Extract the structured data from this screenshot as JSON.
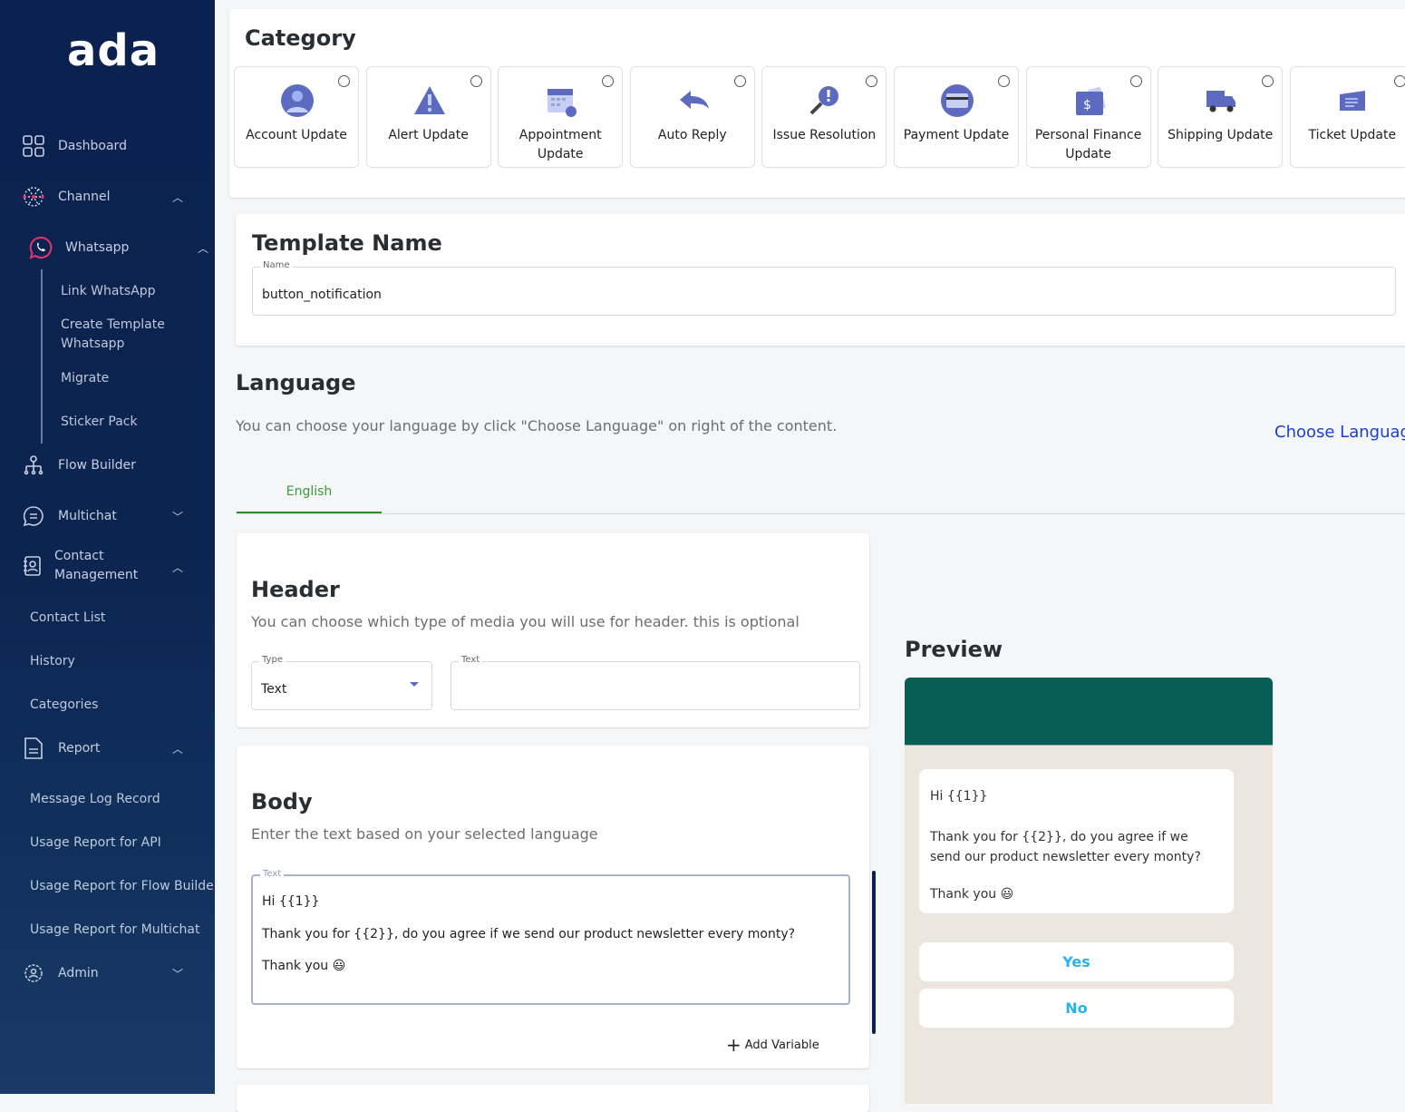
{
  "sidebar": {
    "logo": "ada",
    "items": [
      {
        "label": "Dashboard",
        "icon": "grid-icon"
      },
      {
        "label": "Channel",
        "icon": "network-icon"
      },
      {
        "label": "Whatsapp",
        "icon": "whatsapp-icon"
      },
      {
        "label": "Flow Builder",
        "icon": "flow-icon"
      },
      {
        "label": "Multichat",
        "icon": "chat-icon"
      },
      {
        "label": "Contact Management",
        "icon": "contact-book-icon"
      },
      {
        "label": "Report",
        "icon": "document-icon"
      },
      {
        "label": "Admin",
        "icon": "gear-icon"
      }
    ],
    "whatsapp_sub": [
      "Link WhatsApp",
      "Create Template Whatsapp",
      "Migrate",
      "Sticker Pack"
    ],
    "contact_sub": [
      "Contact List",
      "History",
      "Categories"
    ],
    "report_sub": [
      "Message Log Record",
      "Usage Report for API",
      "Usage Report for Flow Builder",
      "Usage Report for Multichat"
    ]
  },
  "category": {
    "title": "Category",
    "items": [
      {
        "label": "Account Update",
        "icon": "user-icon"
      },
      {
        "label": "Alert Update",
        "icon": "warning-icon"
      },
      {
        "label": "Appointment Update",
        "icon": "calendar-icon"
      },
      {
        "label": "Auto Reply",
        "icon": "reply-icon"
      },
      {
        "label": "Issue Resolution",
        "icon": "magnifier-alert-icon"
      },
      {
        "label": "Payment Update",
        "icon": "credit-card-icon"
      },
      {
        "label": "Personal Finance Update",
        "icon": "wallet-icon"
      },
      {
        "label": "Shipping Update",
        "icon": "truck-icon"
      },
      {
        "label": "Ticket Update",
        "icon": "ticket-icon"
      }
    ]
  },
  "template": {
    "title": "Template Name",
    "name_label": "Name",
    "name_value": "button_notification"
  },
  "language": {
    "title": "Language",
    "description": "You can choose your language by click \"Choose Language\" on right of the content.",
    "choose_link": "Choose Languag",
    "tab": "English"
  },
  "header": {
    "title": "Header",
    "description": "You can choose which type of media you will use for header. this is optional",
    "type_label": "Type",
    "type_value": "Text",
    "text_label": "Text",
    "text_value": ""
  },
  "body": {
    "title": "Body",
    "description": "Enter the text based on your selected language",
    "text_label": "Text",
    "line1": "Hi {{1}}",
    "line2": "Thank you for {{2}}, do you agree if we send our product newsletter every monty?",
    "line3": "Thank you",
    "emoji": "😃",
    "add_variable": "Add Variable"
  },
  "preview": {
    "title": "Preview",
    "line1": "Hi {{1}}",
    "line2": "Thank you for {{2}}, do you agree if we send our product newsletter every monty?",
    "line3": "Thank you",
    "emoji": "😃",
    "buttons": [
      "Yes",
      "No"
    ]
  },
  "colors": {
    "sidebar": "#0b2250",
    "accent": "#5c6bc0",
    "whatsapp_header": "#075e54",
    "tab_active": "#2e8b2e",
    "link": "#1a3fd1",
    "button_text": "#25b4ee"
  }
}
